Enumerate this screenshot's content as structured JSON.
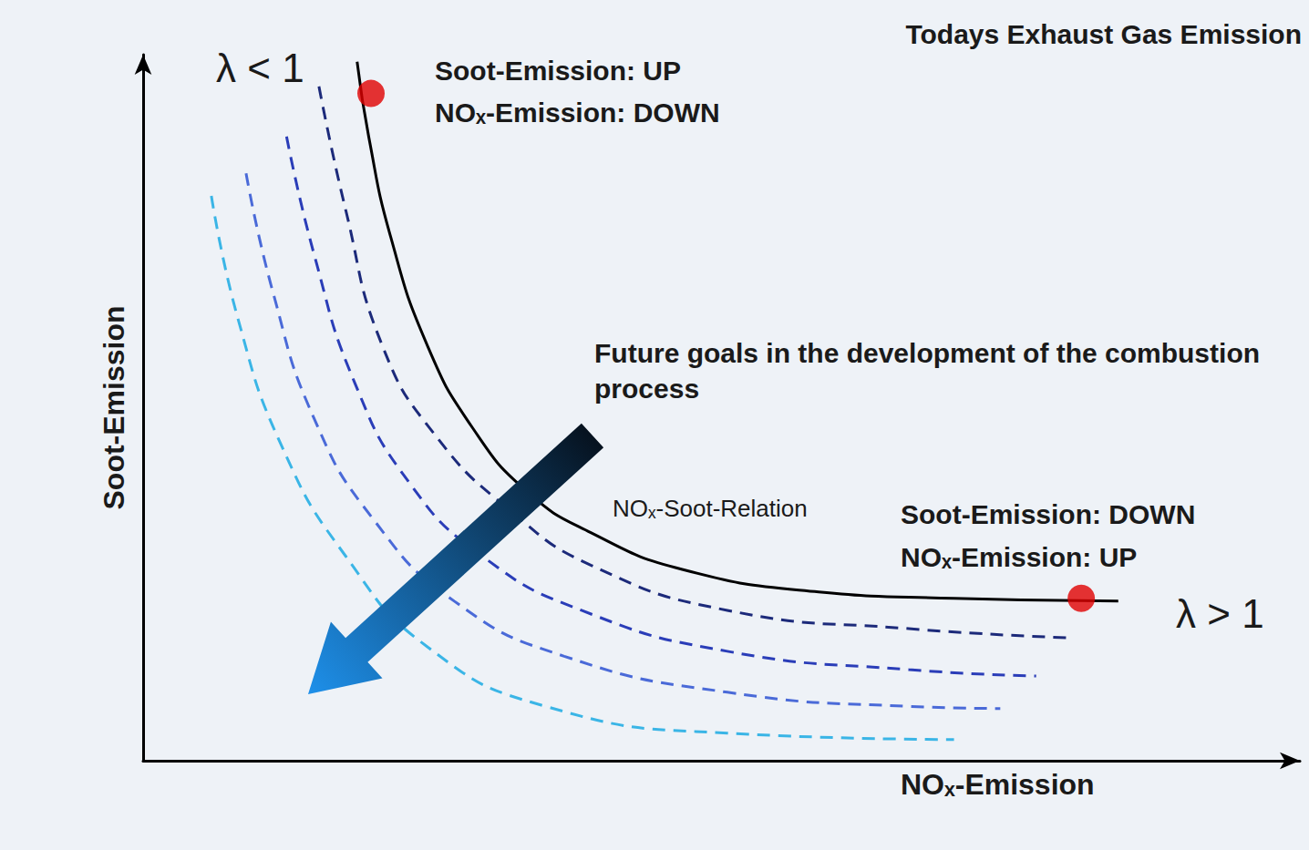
{
  "chart_data": {
    "type": "line",
    "title": "Todays Exhaust Gas Emission",
    "xlabel": "NOₓ-Emission",
    "ylabel": "Soot-Emission",
    "xlim": [
      0,
      100
    ],
    "ylim": [
      0,
      100
    ],
    "xticks": [],
    "yticks": [],
    "tick_labels": false,
    "grid": false,
    "annotations": [
      "λ < 1",
      "Soot-Emission: UP",
      "NOₓ-Emission: DOWN",
      "Future goals in the development of the combustion process",
      "NOₓ-Soot-Relation",
      "Soot-Emission: DOWN",
      "NOₓ-Emission: UP",
      "λ > 1"
    ],
    "series": [
      {
        "type": "line",
        "color": "#000000",
        "line_style": "solid",
        "x": [
          18.5,
          19.5,
          21.4,
          24.6,
          28.5,
          33.2,
          38.7,
          46.6,
          58.4,
          70.1,
          84.3
        ],
        "values": [
          99.0,
          88.4,
          74.2,
          58.7,
          47.1,
          38.1,
          32.3,
          27.1,
          23.9,
          23.0,
          22.6
        ]
      },
      {
        "type": "line",
        "color": "#1c2a7a",
        "line_style": "dashed",
        "x": [
          15.2,
          17.5,
          20.7,
          25.4,
          31.7,
          38.7,
          50.5,
          66.2,
          80.0
        ],
        "values": [
          95.5,
          78.1,
          58.7,
          45.8,
          35.5,
          27.7,
          21.3,
          18.7,
          17.4
        ]
      },
      {
        "type": "line",
        "color": "#2a3db8",
        "line_style": "dashed",
        "x": [
          12.4,
          14.8,
          18.3,
          23.0,
          29.3,
          37.9,
          50.5,
          66.2,
          77.2
        ],
        "values": [
          88.4,
          71.6,
          53.5,
          39.4,
          29.0,
          21.3,
          15.5,
          12.9,
          12.0
        ]
      },
      {
        "type": "line",
        "color": "#4a6ad8",
        "line_style": "dashed",
        "x": [
          8.9,
          11.2,
          14.8,
          19.9,
          26.9,
          36.4,
          50.5,
          66.2,
          74.1
        ],
        "values": [
          83.2,
          66.5,
          48.4,
          34.2,
          22.6,
          14.8,
          9.7,
          7.7,
          7.4
        ]
      },
      {
        "type": "line",
        "color": "#3ab5e6",
        "line_style": "dashed",
        "x": [
          5.9,
          8.2,
          12.0,
          17.5,
          24.6,
          34.8,
          50.5,
          70.1
        ],
        "values": [
          80.0,
          62.6,
          44.5,
          29.0,
          16.1,
          7.7,
          3.9,
          3.0
        ]
      },
      {
        "type": "scatter",
        "color": "#e00000",
        "marker": "circle",
        "x": [
          19.7,
          81.1
        ],
        "values": [
          94.5,
          23.0
        ]
      }
    ]
  }
}
